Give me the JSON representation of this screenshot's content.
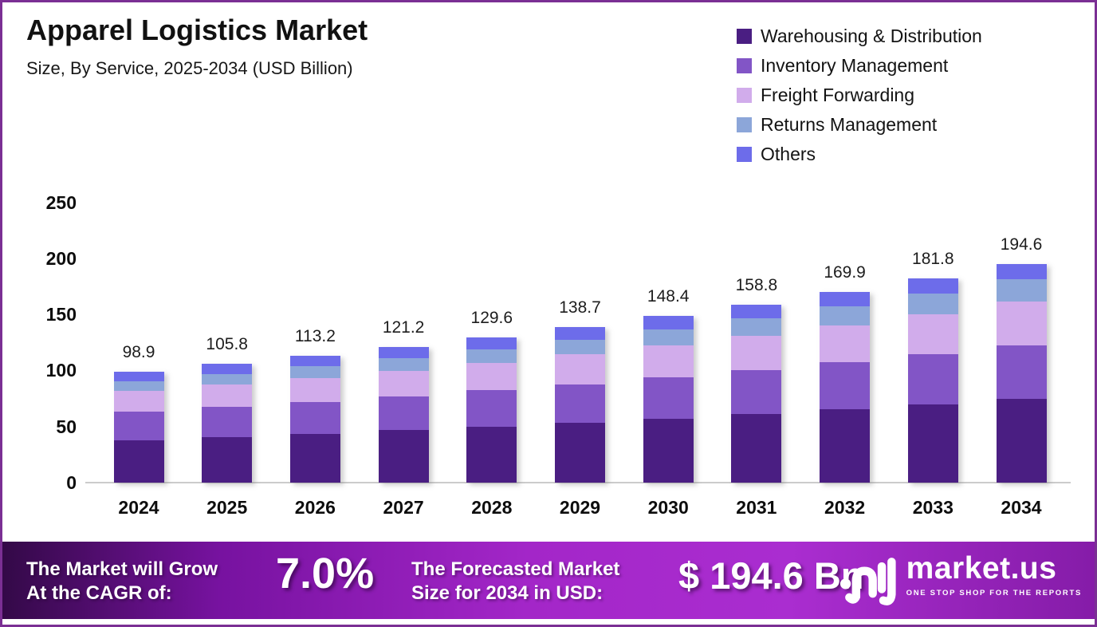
{
  "page": {
    "title": "Apparel Logistics Market",
    "subtitle": "Size, By Service, 2025-2034 (USD Billion)",
    "border_color": "#7b2f94",
    "background_color": "#ffffff"
  },
  "chart_data": {
    "type": "bar",
    "stacked": true,
    "title": "Apparel Logistics Market",
    "subtitle": "Size, By Service, 2025-2034 (USD Billion)",
    "unit": "USD Billion",
    "categories": [
      "2024",
      "2025",
      "2026",
      "2027",
      "2028",
      "2029",
      "2030",
      "2031",
      "2032",
      "2033",
      "2034"
    ],
    "series": [
      {
        "name": "Warehousing & Distribution",
        "color": "#4a1e82",
        "values": [
          38.0,
          40.7,
          43.5,
          46.6,
          49.8,
          53.3,
          57.0,
          61.0,
          65.3,
          69.9,
          74.8
        ]
      },
      {
        "name": "Inventory Management",
        "color": "#8255c6",
        "values": [
          25.2,
          26.8,
          28.6,
          30.4,
          32.4,
          34.5,
          36.8,
          39.2,
          41.8,
          44.5,
          47.4
        ]
      },
      {
        "name": "Freight Forwarding",
        "color": "#d1aceb",
        "values": [
          18.7,
          20.0,
          21.4,
          22.9,
          24.6,
          26.5,
          28.5,
          30.7,
          33.1,
          35.7,
          39.0
        ]
      },
      {
        "name": "Returns Management",
        "color": "#8ca6d9",
        "values": [
          8.3,
          9.1,
          10.0,
          10.9,
          11.9,
          13.1,
          14.3,
          15.7,
          17.1,
          18.7,
          20.4
        ]
      },
      {
        "name": "Others",
        "color": "#6d6cea",
        "values": [
          8.7,
          9.2,
          9.7,
          10.4,
          10.9,
          11.3,
          11.8,
          12.2,
          12.6,
          13.0,
          13.0
        ]
      }
    ],
    "totals": [
      98.9,
      105.8,
      113.2,
      121.2,
      129.6,
      138.7,
      148.4,
      158.8,
      169.9,
      181.8,
      194.6
    ],
    "yticks": [
      0,
      50,
      100,
      150,
      200,
      250
    ],
    "ylim": [
      0,
      250
    ],
    "grid": false,
    "legend_position": "top-right"
  },
  "footer": {
    "cagr_label_line1": "The Market will Grow",
    "cagr_label_line2": "At the CAGR of:",
    "cagr_value": "7.0%",
    "forecast_label_line1": "The Forecasted Market",
    "forecast_label_line2": "Size for 2034 in USD:",
    "forecast_value": "$ 194.6 Bn",
    "brand": {
      "name": "market.us",
      "tagline": "ONE STOP SHOP FOR THE REPORTS"
    }
  }
}
